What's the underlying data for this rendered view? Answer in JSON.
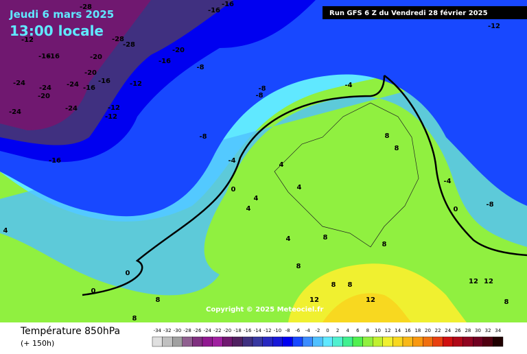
{
  "header": {
    "date": "Jeudi 6 mars 2025",
    "time": "13:00 locale",
    "run": "Run GFS 6 Z du Vendredi 28 février 2025"
  },
  "copyright": "Copyright © 2025 Meteociel.fr",
  "footer": {
    "title": "Température 850hPa",
    "lead": "(+ 150h)"
  },
  "scale": {
    "labels": [
      "-34",
      "-32",
      "-30",
      "-28",
      "-26",
      "-24",
      "-22",
      "-20",
      "-18",
      "-16",
      "-14",
      "-12",
      "-10",
      "-8",
      "-6",
      "-4",
      "-2",
      "0",
      "2",
      "4",
      "6",
      "8",
      "10",
      "12",
      "14",
      "16",
      "18",
      "20",
      "22",
      "24",
      "26",
      "28",
      "30",
      "32",
      "34"
    ],
    "colors": [
      "#e0e0e0",
      "#c0c0c0",
      "#a0a0a0",
      "#906090",
      "#803080",
      "#901890",
      "#a020a0",
      "#701870",
      "#502060",
      "#403080",
      "#3838a0",
      "#2828c0",
      "#1818d8",
      "#0000f0",
      "#1848ff",
      "#3c8cff",
      "#50c0ff",
      "#60e8ff",
      "#50f0d0",
      "#40f090",
      "#50f050",
      "#90f040",
      "#c0f030",
      "#f0f030",
      "#f8d820",
      "#f8b818",
      "#f89810",
      "#f07010",
      "#e84010",
      "#d01010",
      "#b00818",
      "#900420",
      "#700020",
      "#500010",
      "#200000"
    ]
  },
  "map_labels": [
    "-28",
    "-16",
    "-16",
    "-12",
    "-28",
    "-28",
    "-20",
    "-16",
    "-16",
    "-20",
    "-16",
    "-8",
    "-20",
    "-16",
    "-12",
    "-24",
    "-24",
    "-20",
    "-24",
    "-16",
    "-24",
    "-24",
    "-12",
    "-12",
    "-8",
    "-8",
    "-4",
    "-8",
    "-16",
    "-4",
    "4",
    "4",
    "0",
    "4",
    "4",
    "0",
    "-8",
    "-4",
    "8",
    "8",
    "8",
    "8",
    "4",
    "8",
    "8",
    "8",
    "12",
    "12",
    "0",
    "0",
    "-12",
    "4",
    "8",
    "8",
    "8",
    "12",
    "12"
  ]
}
